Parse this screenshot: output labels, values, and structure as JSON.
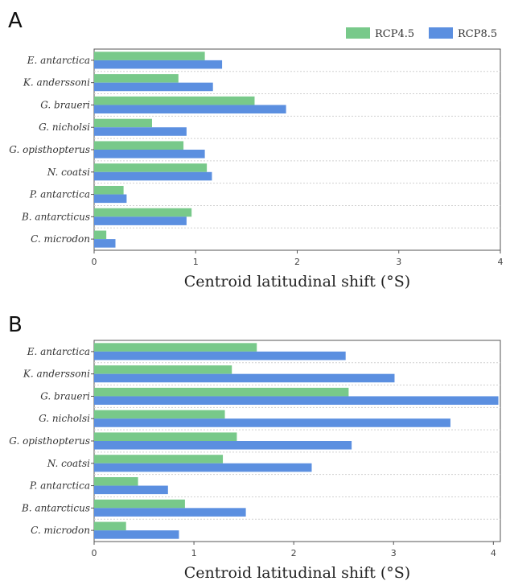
{
  "legend": {
    "items": [
      {
        "name": "RCP4.5",
        "color": "#78c98a"
      },
      {
        "name": "RCP8.5",
        "color": "#5b8fe0"
      }
    ]
  },
  "chart_data": [
    {
      "type": "bar",
      "orientation": "horizontal",
      "panel": "A",
      "categories": [
        "E. antarctica",
        "K. anderssoni",
        "G. braueri",
        "G. nicholsi",
        "G. opisthopterus",
        "N. coatsi",
        "P. antarctica",
        "B. antarcticus",
        "C. microdon"
      ],
      "series": [
        {
          "name": "RCP4.5",
          "values": [
            1.09,
            0.83,
            1.58,
            0.57,
            0.88,
            1.11,
            0.29,
            0.96,
            0.12
          ]
        },
        {
          "name": "RCP8.5",
          "values": [
            1.26,
            1.17,
            1.89,
            0.91,
            1.09,
            1.16,
            0.32,
            0.91,
            0.21
          ]
        }
      ],
      "xlabel": "Centroid latitudinal shift (°S)",
      "xlim": [
        0,
        4
      ],
      "xticks": [
        "0",
        "1",
        "2",
        "3",
        "4"
      ],
      "grid": "horizontal dotted",
      "legend_position": "top-right"
    },
    {
      "type": "bar",
      "orientation": "horizontal",
      "panel": "B",
      "categories": [
        "E. antarctica",
        "K. anderssoni",
        "G. braueri",
        "G. nicholsi",
        "G. opisthopterus",
        "N. coatsi",
        "P. antarctica",
        "B. antarcticus",
        "C. microdon"
      ],
      "series": [
        {
          "name": "RCP4.5",
          "values": [
            1.63,
            1.38,
            2.55,
            1.31,
            1.43,
            1.29,
            0.44,
            0.91,
            0.32
          ]
        },
        {
          "name": "RCP8.5",
          "values": [
            2.52,
            3.01,
            4.05,
            3.57,
            2.58,
            2.18,
            0.74,
            1.52,
            0.85
          ]
        }
      ],
      "xlabel": "Centroid latitudinal shift (°S)",
      "xlim": [
        0,
        4.07
      ],
      "xticks": [
        "0",
        "1",
        "2",
        "3",
        "4"
      ],
      "grid": "horizontal dotted"
    }
  ]
}
